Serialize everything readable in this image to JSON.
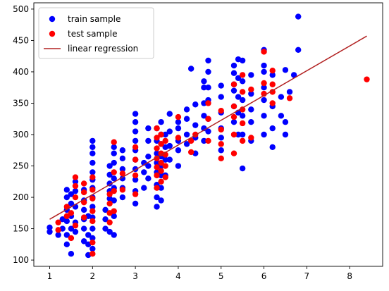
{
  "chart_data": {
    "type": "scatter",
    "title": "",
    "xlabel": "",
    "ylabel": "",
    "xlim": [
      0.63,
      8.77
    ],
    "ylim": [
      90,
      510
    ],
    "xticks": [
      1,
      2,
      3,
      4,
      5,
      6,
      7,
      8
    ],
    "yticks": [
      100,
      150,
      200,
      250,
      300,
      350,
      400,
      450,
      500
    ],
    "grid": false,
    "legend_position": "top-left",
    "series": [
      {
        "name": "train sample",
        "kind": "scatter",
        "color": "#0000ff",
        "points": [
          [
            1.0,
            145
          ],
          [
            1.0,
            152
          ],
          [
            1.2,
            140
          ],
          [
            1.3,
            150
          ],
          [
            1.3,
            165
          ],
          [
            1.4,
            125
          ],
          [
            1.4,
            140
          ],
          [
            1.4,
            162
          ],
          [
            1.4,
            180
          ],
          [
            1.4,
            200
          ],
          [
            1.4,
            212
          ],
          [
            1.5,
            110
          ],
          [
            1.5,
            150
          ],
          [
            1.5,
            170
          ],
          [
            1.5,
            190
          ],
          [
            1.5,
            205
          ],
          [
            1.6,
            145
          ],
          [
            1.6,
            160
          ],
          [
            1.6,
            185
          ],
          [
            1.6,
            210
          ],
          [
            1.6,
            225
          ],
          [
            1.8,
            130
          ],
          [
            1.8,
            150
          ],
          [
            1.8,
            165
          ],
          [
            1.8,
            180
          ],
          [
            1.8,
            195
          ],
          [
            1.8,
            212
          ],
          [
            1.9,
            108
          ],
          [
            1.9,
            125
          ],
          [
            1.9,
            140
          ],
          [
            1.9,
            170
          ],
          [
            2.0,
            118
          ],
          [
            2.0,
            135
          ],
          [
            2.0,
            150
          ],
          [
            2.0,
            168
          ],
          [
            2.0,
            185
          ],
          [
            2.0,
            200
          ],
          [
            2.0,
            215
          ],
          [
            2.0,
            228
          ],
          [
            2.0,
            240
          ],
          [
            2.0,
            255
          ],
          [
            2.0,
            270
          ],
          [
            2.0,
            280
          ],
          [
            2.0,
            290
          ],
          [
            2.3,
            150
          ],
          [
            2.3,
            165
          ],
          [
            2.3,
            180
          ],
          [
            2.4,
            145
          ],
          [
            2.4,
            198
          ],
          [
            2.4,
            210
          ],
          [
            2.4,
            222
          ],
          [
            2.4,
            236
          ],
          [
            2.4,
            250
          ],
          [
            2.5,
            140
          ],
          [
            2.5,
            170
          ],
          [
            2.5,
            195
          ],
          [
            2.5,
            215
          ],
          [
            2.5,
            230
          ],
          [
            2.5,
            255
          ],
          [
            2.5,
            270
          ],
          [
            2.5,
            280
          ],
          [
            2.7,
            200
          ],
          [
            2.7,
            215
          ],
          [
            2.7,
            230
          ],
          [
            2.7,
            245
          ],
          [
            2.7,
            262
          ],
          [
            2.7,
            275
          ],
          [
            3.0,
            190
          ],
          [
            3.0,
            210
          ],
          [
            3.0,
            228
          ],
          [
            3.0,
            245
          ],
          [
            3.0,
            260
          ],
          [
            3.0,
            275
          ],
          [
            3.0,
            290
          ],
          [
            3.0,
            305
          ],
          [
            3.0,
            320
          ],
          [
            3.0,
            333
          ],
          [
            3.2,
            215
          ],
          [
            3.2,
            240
          ],
          [
            3.2,
            255
          ],
          [
            3.3,
            230
          ],
          [
            3.3,
            250
          ],
          [
            3.3,
            265
          ],
          [
            3.3,
            290
          ],
          [
            3.3,
            310
          ],
          [
            3.5,
            185
          ],
          [
            3.5,
            200
          ],
          [
            3.5,
            220
          ],
          [
            3.5,
            240
          ],
          [
            3.5,
            255
          ],
          [
            3.5,
            270
          ],
          [
            3.5,
            290
          ],
          [
            3.5,
            310
          ],
          [
            3.6,
            195
          ],
          [
            3.6,
            215
          ],
          [
            3.6,
            235
          ],
          [
            3.6,
            250
          ],
          [
            3.6,
            265
          ],
          [
            3.6,
            285
          ],
          [
            3.6,
            300
          ],
          [
            3.6,
            320
          ],
          [
            3.7,
            235
          ],
          [
            3.7,
            260
          ],
          [
            3.7,
            280
          ],
          [
            3.7,
            300
          ],
          [
            3.8,
            260
          ],
          [
            3.8,
            282
          ],
          [
            3.8,
            305
          ],
          [
            3.8,
            333
          ],
          [
            4.0,
            250
          ],
          [
            4.0,
            275
          ],
          [
            4.0,
            290
          ],
          [
            4.0,
            310
          ],
          [
            4.0,
            320
          ],
          [
            4.2,
            285
          ],
          [
            4.2,
            300
          ],
          [
            4.2,
            325
          ],
          [
            4.2,
            340
          ],
          [
            4.3,
            405
          ],
          [
            4.4,
            270
          ],
          [
            4.4,
            295
          ],
          [
            4.4,
            315
          ],
          [
            4.4,
            348
          ],
          [
            4.6,
            290
          ],
          [
            4.6,
            310
          ],
          [
            4.6,
            330
          ],
          [
            4.6,
            350
          ],
          [
            4.6,
            375
          ],
          [
            4.6,
            385
          ],
          [
            4.7,
            305
          ],
          [
            4.7,
            325
          ],
          [
            4.7,
            355
          ],
          [
            4.7,
            375
          ],
          [
            4.7,
            400
          ],
          [
            4.7,
            418
          ],
          [
            5.0,
            275
          ],
          [
            5.0,
            295
          ],
          [
            5.0,
            310
          ],
          [
            5.0,
            335
          ],
          [
            5.0,
            360
          ],
          [
            5.0,
            378
          ],
          [
            5.3,
            320
          ],
          [
            5.3,
            345
          ],
          [
            5.3,
            370
          ],
          [
            5.3,
            380
          ],
          [
            5.3,
            398
          ],
          [
            5.3,
            410
          ],
          [
            5.4,
            300
          ],
          [
            5.4,
            335
          ],
          [
            5.4,
            360
          ],
          [
            5.4,
            390
          ],
          [
            5.4,
            420
          ],
          [
            5.5,
            246
          ],
          [
            5.5,
            300
          ],
          [
            5.5,
            330
          ],
          [
            5.5,
            355
          ],
          [
            5.5,
            385
          ],
          [
            5.5,
            418
          ],
          [
            5.7,
            290
          ],
          [
            5.7,
            320
          ],
          [
            5.7,
            340
          ],
          [
            5.7,
            365
          ],
          [
            5.7,
            395
          ],
          [
            6.0,
            300
          ],
          [
            6.0,
            330
          ],
          [
            6.0,
            355
          ],
          [
            6.0,
            375
          ],
          [
            6.0,
            410
          ],
          [
            6.0,
            435
          ],
          [
            6.0,
            400
          ],
          [
            6.2,
            280
          ],
          [
            6.2,
            310
          ],
          [
            6.2,
            345
          ],
          [
            6.2,
            395
          ],
          [
            6.4,
            330
          ],
          [
            6.4,
            360
          ],
          [
            6.5,
            320
          ],
          [
            6.5,
            300
          ],
          [
            6.6,
            368
          ],
          [
            6.7,
            395
          ],
          [
            6.8,
            488
          ],
          [
            6.8,
            435
          ],
          [
            6.5,
            403
          ]
        ]
      },
      {
        "name": "test sample",
        "kind": "scatter",
        "color": "#ff0000",
        "points": [
          [
            1.2,
            148
          ],
          [
            1.2,
            160
          ],
          [
            1.4,
            170
          ],
          [
            1.4,
            185
          ],
          [
            1.5,
            135
          ],
          [
            1.5,
            175
          ],
          [
            1.6,
            200
          ],
          [
            1.6,
            218
          ],
          [
            1.6,
            232
          ],
          [
            1.6,
            155
          ],
          [
            1.8,
            168
          ],
          [
            1.8,
            192
          ],
          [
            1.8,
            208
          ],
          [
            1.8,
            222
          ],
          [
            2.0,
            110
          ],
          [
            2.0,
            128
          ],
          [
            2.0,
            162
          ],
          [
            2.0,
            178
          ],
          [
            2.0,
            198
          ],
          [
            2.0,
            212
          ],
          [
            2.0,
            232
          ],
          [
            2.4,
            160
          ],
          [
            2.4,
            175
          ],
          [
            2.4,
            190
          ],
          [
            2.4,
            205
          ],
          [
            2.5,
            178
          ],
          [
            2.5,
            210
          ],
          [
            2.5,
            240
          ],
          [
            2.5,
            288
          ],
          [
            2.7,
            212
          ],
          [
            2.7,
            238
          ],
          [
            3.0,
            205
          ],
          [
            3.0,
            235
          ],
          [
            3.0,
            260
          ],
          [
            3.0,
            280
          ],
          [
            3.5,
            215
          ],
          [
            3.5,
            235
          ],
          [
            3.5,
            248
          ],
          [
            3.5,
            262
          ],
          [
            3.5,
            278
          ],
          [
            3.5,
            295
          ],
          [
            3.5,
            310
          ],
          [
            3.6,
            225
          ],
          [
            3.6,
            242
          ],
          [
            3.6,
            255
          ],
          [
            3.6,
            270
          ],
          [
            3.6,
            285
          ],
          [
            3.6,
            300
          ],
          [
            3.7,
            232
          ],
          [
            3.7,
            250
          ],
          [
            3.7,
            268
          ],
          [
            3.7,
            290
          ],
          [
            4.0,
            295
          ],
          [
            4.0,
            328
          ],
          [
            4.3,
            272
          ],
          [
            4.3,
            290
          ],
          [
            4.4,
            300
          ],
          [
            4.7,
            290
          ],
          [
            4.7,
            325
          ],
          [
            4.7,
            350
          ],
          [
            5.0,
            262
          ],
          [
            5.0,
            285
          ],
          [
            5.0,
            308
          ],
          [
            5.0,
            338
          ],
          [
            5.3,
            270
          ],
          [
            5.3,
            300
          ],
          [
            5.3,
            328
          ],
          [
            5.3,
            345
          ],
          [
            5.3,
            380
          ],
          [
            5.5,
            290
          ],
          [
            5.5,
            318
          ],
          [
            5.5,
            340
          ],
          [
            5.5,
            368
          ],
          [
            5.5,
            395
          ],
          [
            5.7,
            295
          ],
          [
            5.7,
            372
          ],
          [
            6.0,
            365
          ],
          [
            6.0,
            382
          ],
          [
            6.0,
            432
          ],
          [
            6.2,
            350
          ],
          [
            6.2,
            368
          ],
          [
            6.2,
            380
          ],
          [
            6.2,
            402
          ],
          [
            6.6,
            358
          ],
          [
            8.4,
            388
          ]
        ]
      },
      {
        "name": "linear regression",
        "kind": "line",
        "color": "#b22222",
        "points": [
          [
            1.0,
            165
          ],
          [
            8.4,
            457
          ]
        ]
      }
    ]
  }
}
